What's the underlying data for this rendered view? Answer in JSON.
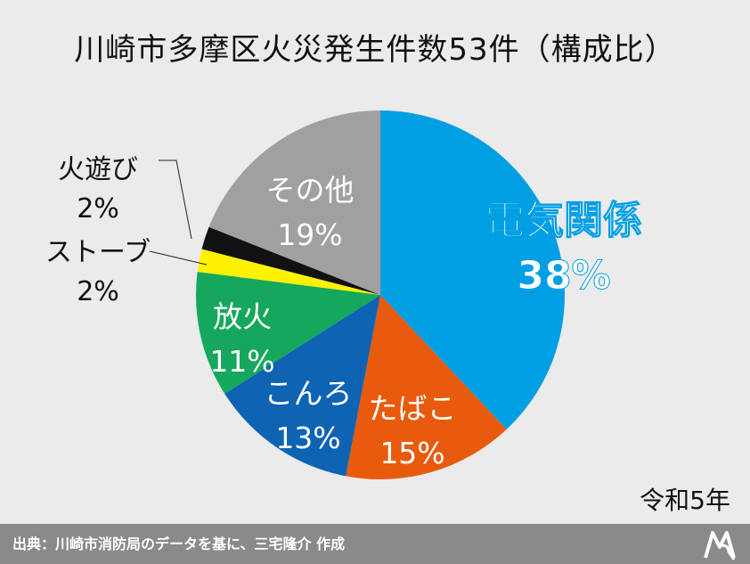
{
  "chart_data": {
    "type": "pie",
    "title": "川崎市多摩区火災発生件数53件（構成比）",
    "slices": [
      {
        "label": "電気関係",
        "value": 38,
        "value_label": "38%",
        "color": "#009fe3"
      },
      {
        "label": "たばこ",
        "value": 15,
        "value_label": "15%",
        "color": "#e85b0c"
      },
      {
        "label": "こんろ",
        "value": 13,
        "value_label": "13%",
        "color": "#0e63b3"
      },
      {
        "label": "放火",
        "value": 11,
        "value_label": "11%",
        "color": "#15a85c"
      },
      {
        "label": "ストーブ",
        "value": 2,
        "value_label": "2%",
        "color": "#fff200"
      },
      {
        "label": "火遊び",
        "value": 2,
        "value_label": "2%",
        "color": "#111111"
      },
      {
        "label": "その他",
        "value": 19,
        "value_label": "19%",
        "color": "#a0a0a0"
      }
    ]
  },
  "era_label": "令和5年",
  "footer": {
    "source_text": "出典：川崎市消防局のデータを基に、三宅隆介 作成"
  },
  "logo_icon": "mr-logo-icon"
}
